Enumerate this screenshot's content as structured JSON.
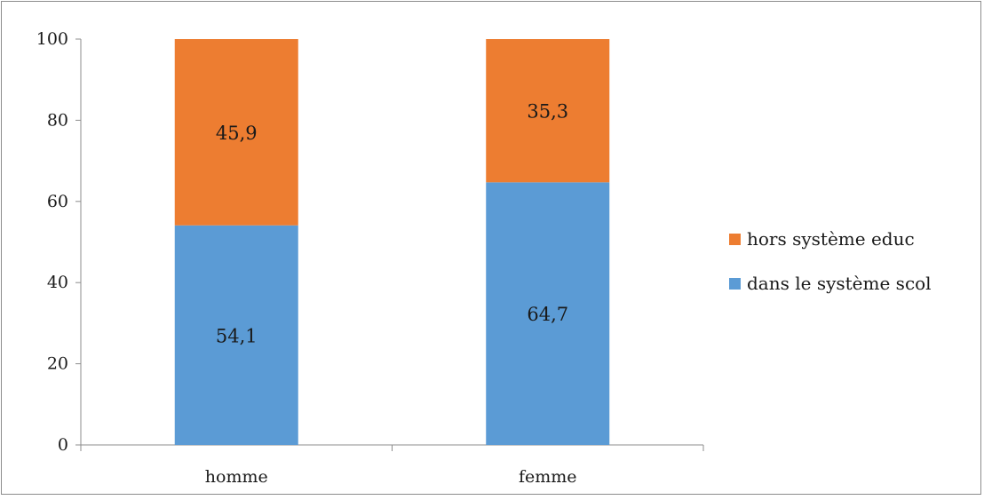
{
  "chart_data": {
    "type": "bar",
    "stacked": true,
    "categories": [
      "homme",
      "femme"
    ],
    "series": [
      {
        "name": "dans le système scol",
        "values": [
          54.1,
          64.7
        ],
        "labels": [
          "54,1",
          "64,7"
        ],
        "color": "#5b9bd5"
      },
      {
        "name": "hors système educ",
        "values": [
          45.9,
          35.3
        ],
        "labels": [
          "45,9",
          "35,3"
        ],
        "color": "#ed7d31"
      }
    ],
    "ylim": [
      0,
      100
    ],
    "yticks": [
      "0",
      "20",
      "40",
      "60",
      "80",
      "100"
    ],
    "grid": false,
    "legend_position": "right",
    "legend_order": [
      "hors système educ",
      "dans le système scol"
    ]
  }
}
